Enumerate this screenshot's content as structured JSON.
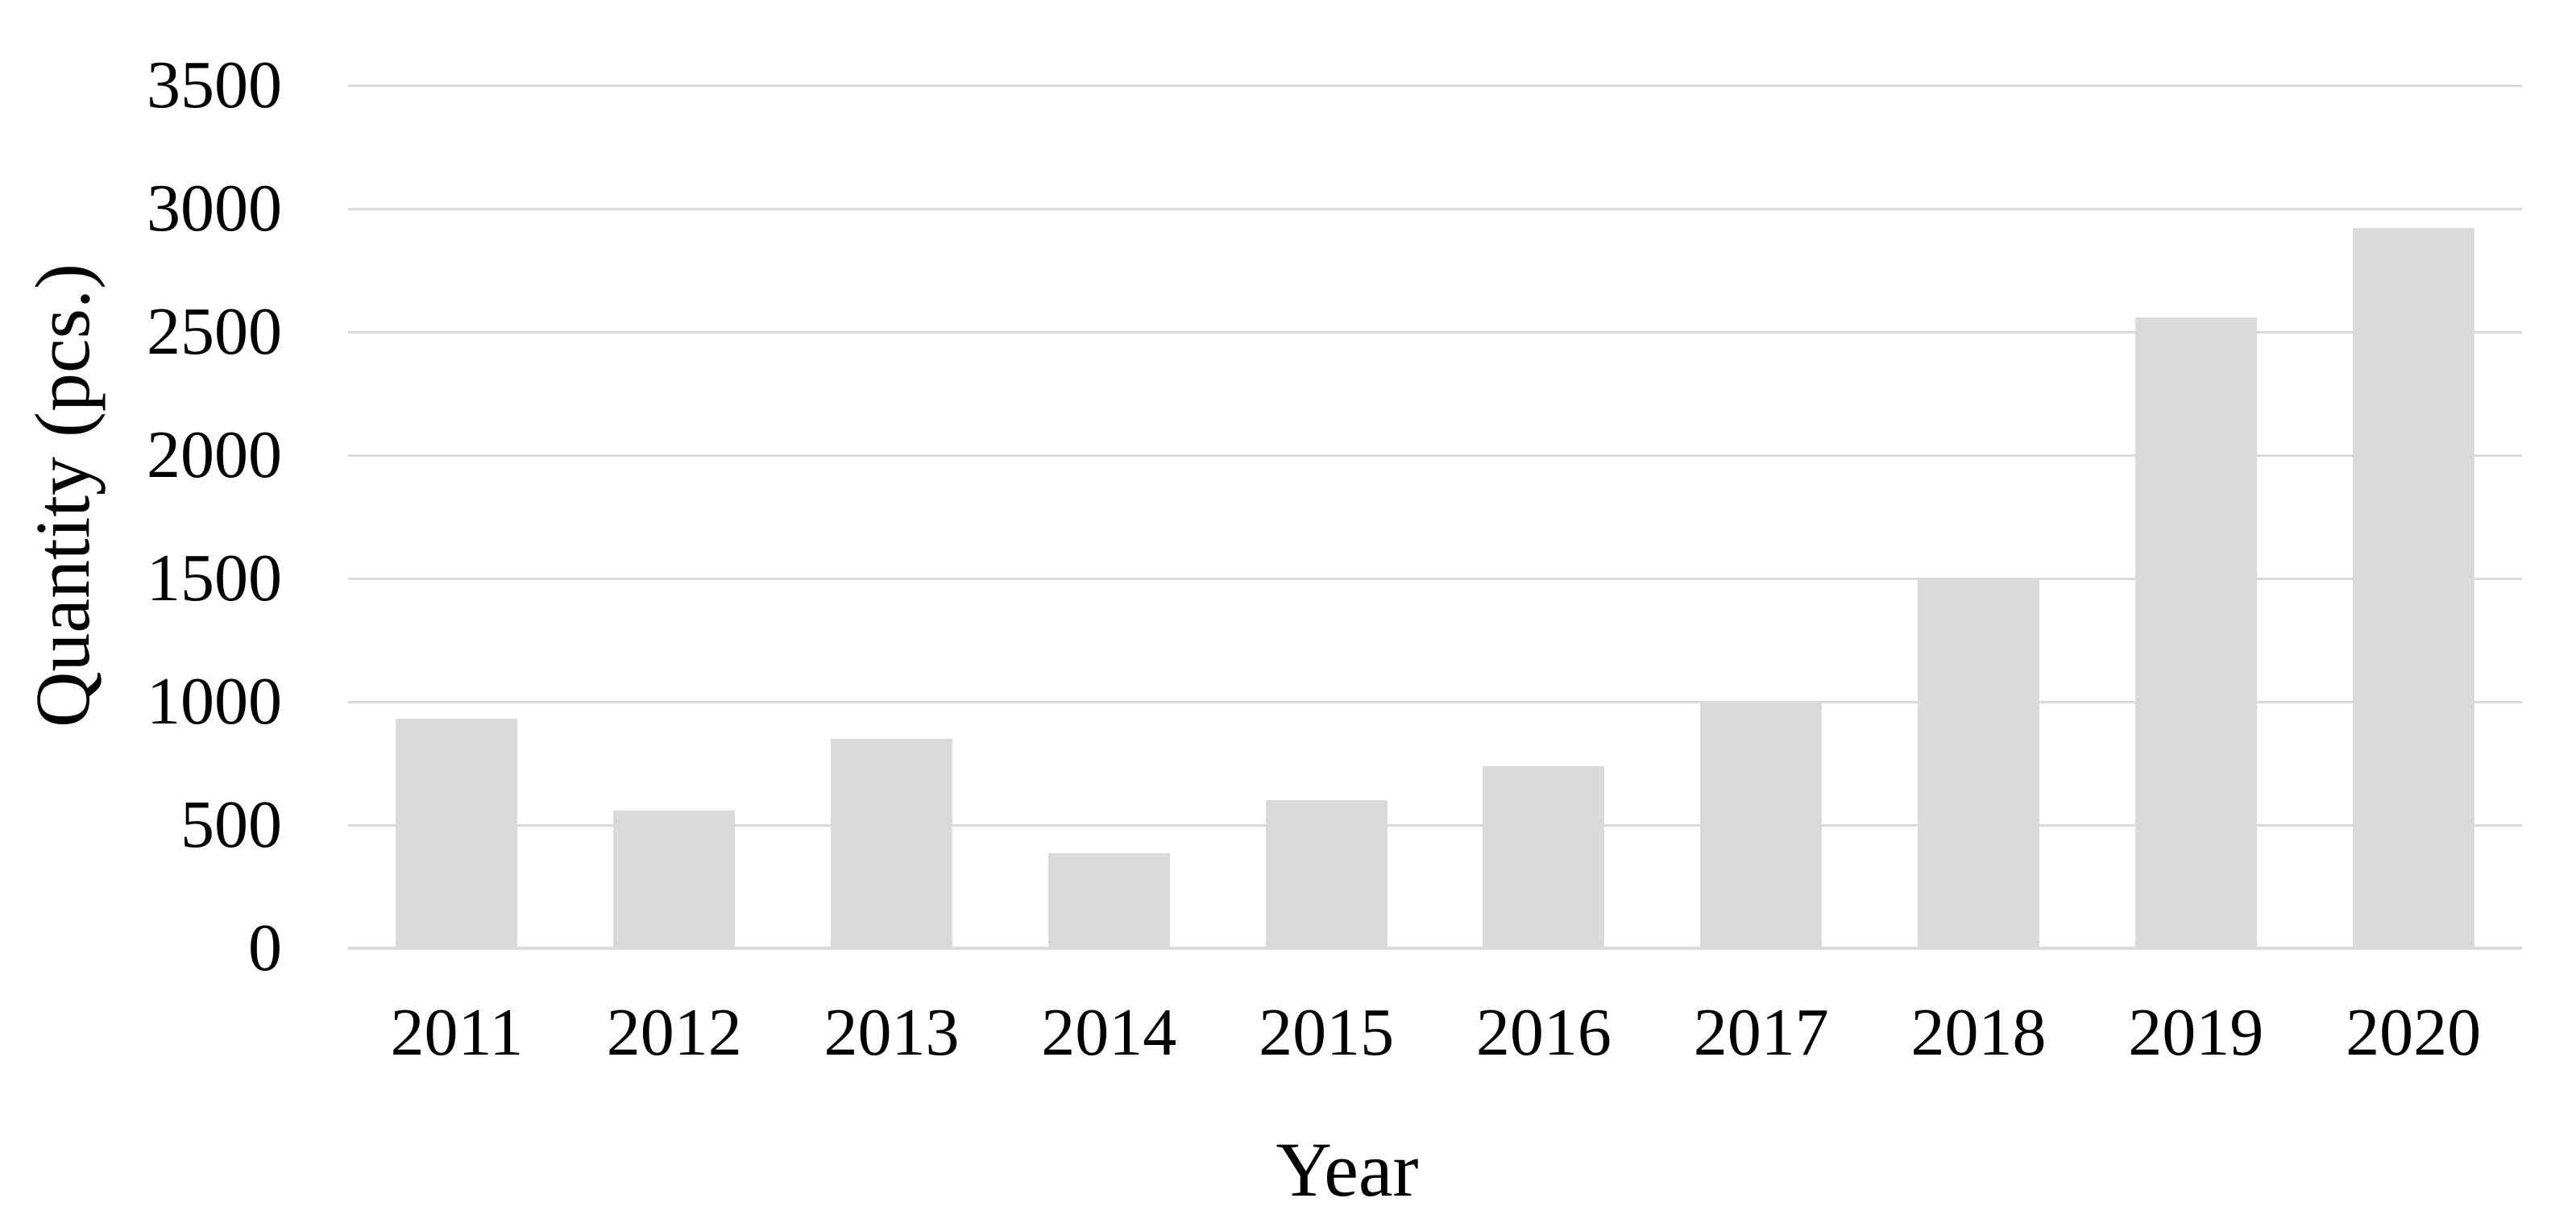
{
  "chart_data": {
    "type": "bar",
    "categories": [
      "2011",
      "2012",
      "2013",
      "2014",
      "2015",
      "2016",
      "2017",
      "2018",
      "2019",
      "2020"
    ],
    "values": [
      930,
      560,
      850,
      385,
      600,
      740,
      1000,
      1500,
      2560,
      2920
    ],
    "title": "",
    "xlabel": "Year",
    "ylabel": "Quantity (pcs.)",
    "ylim": [
      0,
      3500
    ],
    "ytick_interval": 500,
    "yticks": [
      0,
      500,
      1000,
      1500,
      2000,
      2500,
      3000,
      3500
    ],
    "grid": "horizontal-only",
    "legend": "none",
    "series_count": 1,
    "bar_color": "#d9d9d9",
    "gridline_color": "#d9d9d9",
    "axis_line_color": "#d9d9d9",
    "text_color": "#000000",
    "background_color": "#ffffff"
  }
}
